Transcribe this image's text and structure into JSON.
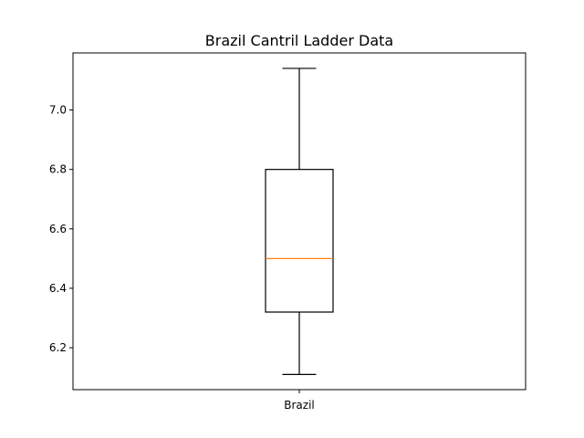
{
  "chart_data": {
    "type": "box",
    "title": "Brazil Cantril Ladder Data",
    "xlabel": "",
    "ylabel": "",
    "categories": [
      "Brazil"
    ],
    "boxes": [
      {
        "category": "Brazil",
        "whisker_low": 6.11,
        "q1": 6.32,
        "median": 6.5,
        "q3": 6.8,
        "whisker_high": 7.14
      }
    ],
    "yticks": [
      6.2,
      6.4,
      6.6,
      6.8,
      7.0
    ],
    "ytick_labels": [
      "6.2",
      "6.4",
      "6.6",
      "6.8",
      "7.0"
    ],
    "ylim": [
      6.059,
      7.192
    ],
    "grid": false,
    "colors": {
      "box": "#000000",
      "median": "#ff7f0e",
      "whisker": "#000000",
      "frame": "#000000"
    }
  }
}
